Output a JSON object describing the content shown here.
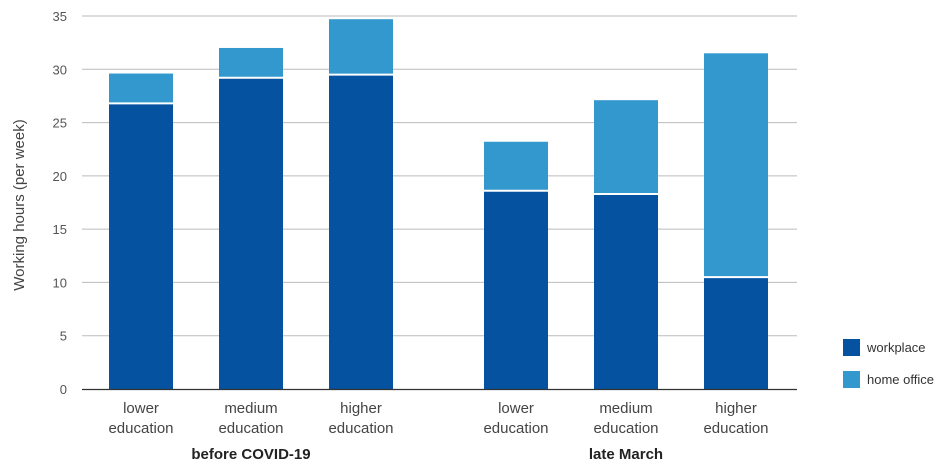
{
  "chart_data": {
    "type": "bar",
    "stacked": true,
    "ylabel": "Working hours (per week)",
    "ylim": [
      0,
      35
    ],
    "yticks": [
      "0",
      "5",
      "10",
      "15",
      "20",
      "25",
      "30",
      "35"
    ],
    "grid": true,
    "legend_position": "bottom-right",
    "groups": [
      {
        "label": "before COVID-19",
        "categories": [
          [
            "lower",
            "education"
          ],
          [
            "medium",
            "education"
          ],
          [
            "higher",
            "education"
          ]
        ]
      },
      {
        "label": "late March",
        "categories": [
          [
            "lower",
            "education"
          ],
          [
            "medium",
            "education"
          ],
          [
            "higher",
            "education"
          ]
        ]
      }
    ],
    "series": [
      {
        "name": "workplace",
        "color": "#0452a0",
        "values": [
          26.8,
          29.2,
          29.5,
          18.6,
          18.3,
          10.5
        ]
      },
      {
        "name": "home office",
        "color": "#3398cd",
        "values": [
          2.8,
          2.8,
          5.2,
          4.6,
          8.8,
          21.0
        ]
      }
    ]
  }
}
